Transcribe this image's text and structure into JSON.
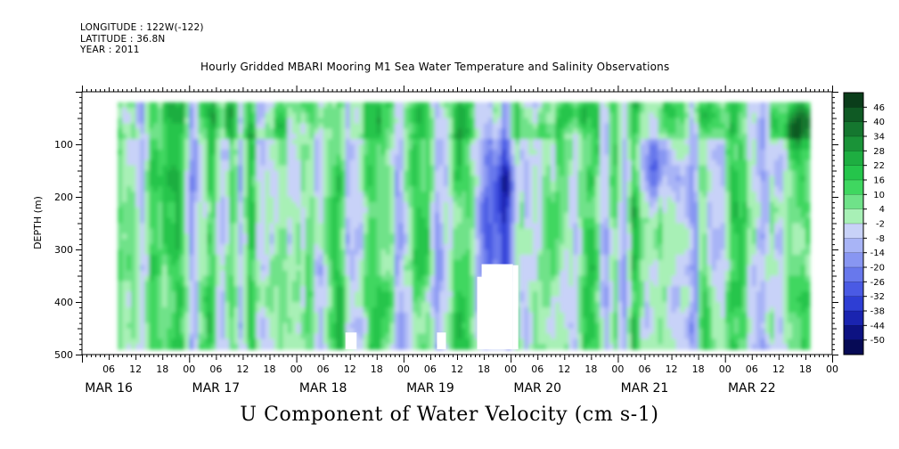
{
  "header": {
    "longitude": "LONGITUDE : 122W(-122)",
    "latitude": "LATITUDE : 36.8N",
    "year": "YEAR : 2011",
    "title": "Hourly Gridded MBARI Mooring M1 Sea Water Temperature and Salinity Observations"
  },
  "chart_data": {
    "type": "heatmap",
    "title": "U Component of Water Velocity (cm s-1)",
    "ylabel": "DEPTH (m)",
    "y_inverted": true,
    "ylim": [
      0,
      500
    ],
    "data_depth_range": [
      20,
      490
    ],
    "y_ticks": [
      100,
      200,
      300,
      400,
      500
    ],
    "x_unit": "hours",
    "xlim": [
      0,
      168
    ],
    "data_x_range": [
      8,
      163
    ],
    "x_hour_labels": [
      "06",
      "12",
      "18",
      "00",
      "06",
      "12",
      "18",
      "00",
      "06",
      "12",
      "18",
      "00",
      "06",
      "12",
      "18",
      "00",
      "06",
      "12",
      "18",
      "00",
      "06",
      "12",
      "18",
      "00",
      "06",
      "12",
      "18",
      "00"
    ],
    "day_labels": [
      "MAR 16",
      "MAR 17",
      "MAR 18",
      "MAR 19",
      "MAR 20",
      "MAR 21",
      "MAR 22"
    ],
    "colorbar": {
      "labels": [
        "46",
        "40",
        "34",
        "28",
        "22",
        "16",
        "10",
        "4",
        "-2",
        "-8",
        "-14",
        "-20",
        "-26",
        "-32",
        "-38",
        "-44",
        "-50"
      ],
      "range": [
        -50,
        52
      ],
      "colors": [
        "#0a3d1a",
        "#0f5a24",
        "#15772f",
        "#1a9338",
        "#1eae41",
        "#25c54b",
        "#3fd760",
        "#6fe289",
        "#a8f0b6",
        "#c8d2f8",
        "#a8b4f6",
        "#8896f2",
        "#6878ec",
        "#4a5ae4",
        "#2e3ed4",
        "#1a24b0",
        "#0d1282",
        "#060a55"
      ]
    },
    "missing_regions": [
      {
        "x": [
          59,
          61.5
        ],
        "depth": [
          458,
          490
        ]
      },
      {
        "x": [
          79.5,
          81.5
        ],
        "depth": [
          458,
          490
        ]
      },
      {
        "x": [
          89.5,
          96.5
        ],
        "depth": [
          328,
          490
        ]
      }
    ]
  }
}
